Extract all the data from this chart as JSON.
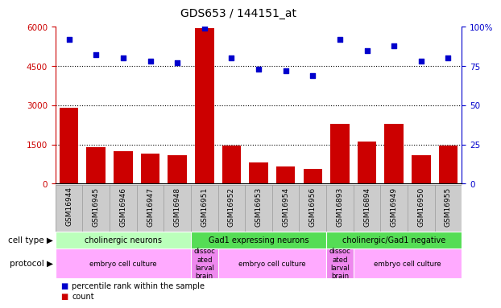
{
  "title": "GDS653 / 144151_at",
  "samples": [
    "GSM16944",
    "GSM16945",
    "GSM16946",
    "GSM16947",
    "GSM16948",
    "GSM16951",
    "GSM16952",
    "GSM16953",
    "GSM16954",
    "GSM16956",
    "GSM16893",
    "GSM16894",
    "GSM16949",
    "GSM16950",
    "GSM16955"
  ],
  "counts": [
    2900,
    1400,
    1250,
    1150,
    1100,
    5950,
    1450,
    800,
    650,
    550,
    2300,
    1600,
    2300,
    1100,
    1450
  ],
  "percentiles": [
    92,
    82,
    80,
    78,
    77,
    99,
    80,
    73,
    72,
    69,
    92,
    85,
    88,
    78,
    80
  ],
  "bar_color": "#cc0000",
  "dot_color": "#0000cc",
  "ylim_left": [
    0,
    6000
  ],
  "ylim_right": [
    0,
    100
  ],
  "yticks_left": [
    0,
    1500,
    3000,
    4500,
    6000
  ],
  "yticks_right": [
    0,
    25,
    50,
    75,
    100
  ],
  "grid_values": [
    1500,
    3000,
    4500
  ],
  "cell_type_groups": [
    {
      "label": "cholinergic neurons",
      "start": 0,
      "end": 5,
      "color": "#bbffbb"
    },
    {
      "label": "Gad1 expressing neurons",
      "start": 5,
      "end": 10,
      "color": "#55dd55"
    },
    {
      "label": "cholinergic/Gad1 negative",
      "start": 10,
      "end": 15,
      "color": "#55dd55"
    }
  ],
  "protocol_groups": [
    {
      "label": "embryo cell culture",
      "start": 0,
      "end": 5,
      "color": "#ffaaff"
    },
    {
      "label": "dissoc\nated\nlarval\nbrain",
      "start": 5,
      "end": 6,
      "color": "#ee88ee"
    },
    {
      "label": "embryo cell culture",
      "start": 6,
      "end": 10,
      "color": "#ffaaff"
    },
    {
      "label": "dissoc\nated\nlarval\nbrain",
      "start": 10,
      "end": 11,
      "color": "#ee88ee"
    },
    {
      "label": "embryo cell culture",
      "start": 11,
      "end": 15,
      "color": "#ffaaff"
    },
    {
      "label": "dissoc\nated\nlarval\nbrain",
      "start": 15,
      "end": 16,
      "color": "#ee88ee"
    }
  ],
  "legend_count_color": "#cc0000",
  "legend_dot_color": "#0000cc",
  "cell_type_row_label": "cell type",
  "protocol_row_label": "protocol",
  "background_color": "#ffffff",
  "axis_label_color_left": "#cc0000",
  "axis_label_color_right": "#0000cc",
  "sample_bg_color": "#cccccc",
  "sample_border_color": "#999999"
}
